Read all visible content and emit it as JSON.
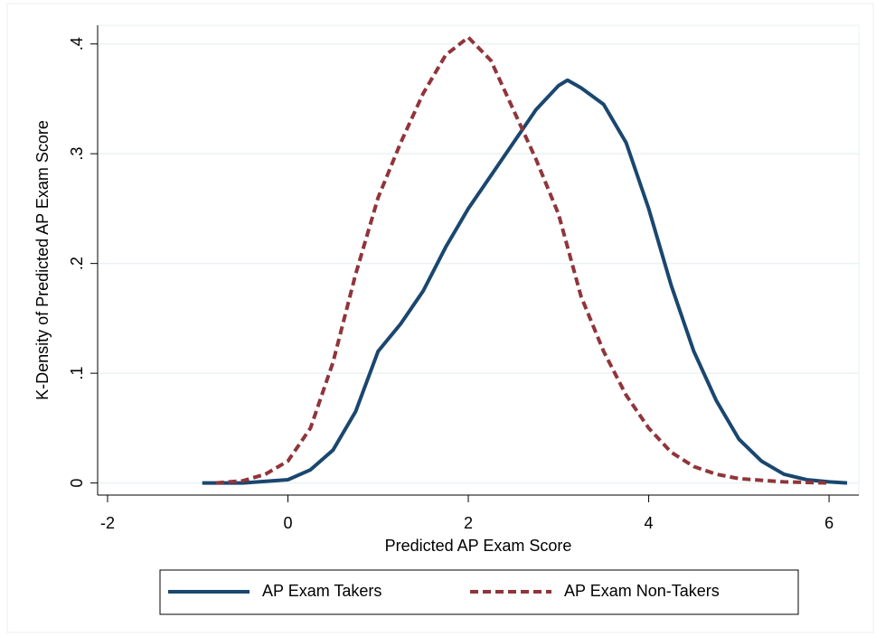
{
  "chart_data": {
    "type": "line",
    "xlabel": "Predicted AP Exam Score",
    "ylabel": "K-Density of Predicted AP Exam Score",
    "xlim": [
      -2.11,
      6.33
    ],
    "xticks": [
      -2,
      0,
      2,
      4,
      6
    ],
    "ylim": [
      -0.011,
      0.417
    ],
    "yticks": [
      0,
      {
        "value": 0.1,
        "label": ".1"
      },
      {
        "value": 0.2,
        "label": ".2"
      },
      {
        "value": 0.3,
        "label": ".3"
      },
      {
        "value": 0.4,
        "label": ".4"
      }
    ],
    "grid": true,
    "series": [
      {
        "name": "AP Exam Takers",
        "color": "#1a476f",
        "dash": false,
        "x": [
          -0.95,
          -0.5,
          0,
          0.25,
          0.5,
          0.75,
          1.0,
          1.25,
          1.5,
          1.75,
          2.0,
          2.25,
          2.5,
          2.75,
          3.0,
          3.1,
          3.25,
          3.5,
          3.75,
          4.0,
          4.25,
          4.5,
          4.75,
          5.0,
          5.25,
          5.5,
          5.75,
          6.0,
          6.2
        ],
        "values": [
          0,
          0,
          0.003,
          0.012,
          0.03,
          0.065,
          0.12,
          0.145,
          0.175,
          0.215,
          0.25,
          0.28,
          0.31,
          0.34,
          0.362,
          0.367,
          0.36,
          0.345,
          0.31,
          0.25,
          0.18,
          0.12,
          0.075,
          0.04,
          0.02,
          0.008,
          0.003,
          0.001,
          0
        ]
      },
      {
        "name": "AP Exam Non-Takers",
        "color": "#90353b",
        "dash": true,
        "x": [
          -0.8,
          -0.5,
          -0.25,
          0,
          0.25,
          0.5,
          0.75,
          1.0,
          1.25,
          1.5,
          1.75,
          2.0,
          2.25,
          2.5,
          2.75,
          3.0,
          3.25,
          3.5,
          3.75,
          4.0,
          4.25,
          4.5,
          4.75,
          5.0,
          5.5,
          6.0
        ],
        "values": [
          0,
          0.002,
          0.008,
          0.02,
          0.05,
          0.11,
          0.19,
          0.26,
          0.31,
          0.355,
          0.39,
          0.406,
          0.385,
          0.34,
          0.295,
          0.245,
          0.17,
          0.12,
          0.08,
          0.05,
          0.028,
          0.015,
          0.008,
          0.004,
          0.001,
          0
        ]
      }
    ]
  }
}
